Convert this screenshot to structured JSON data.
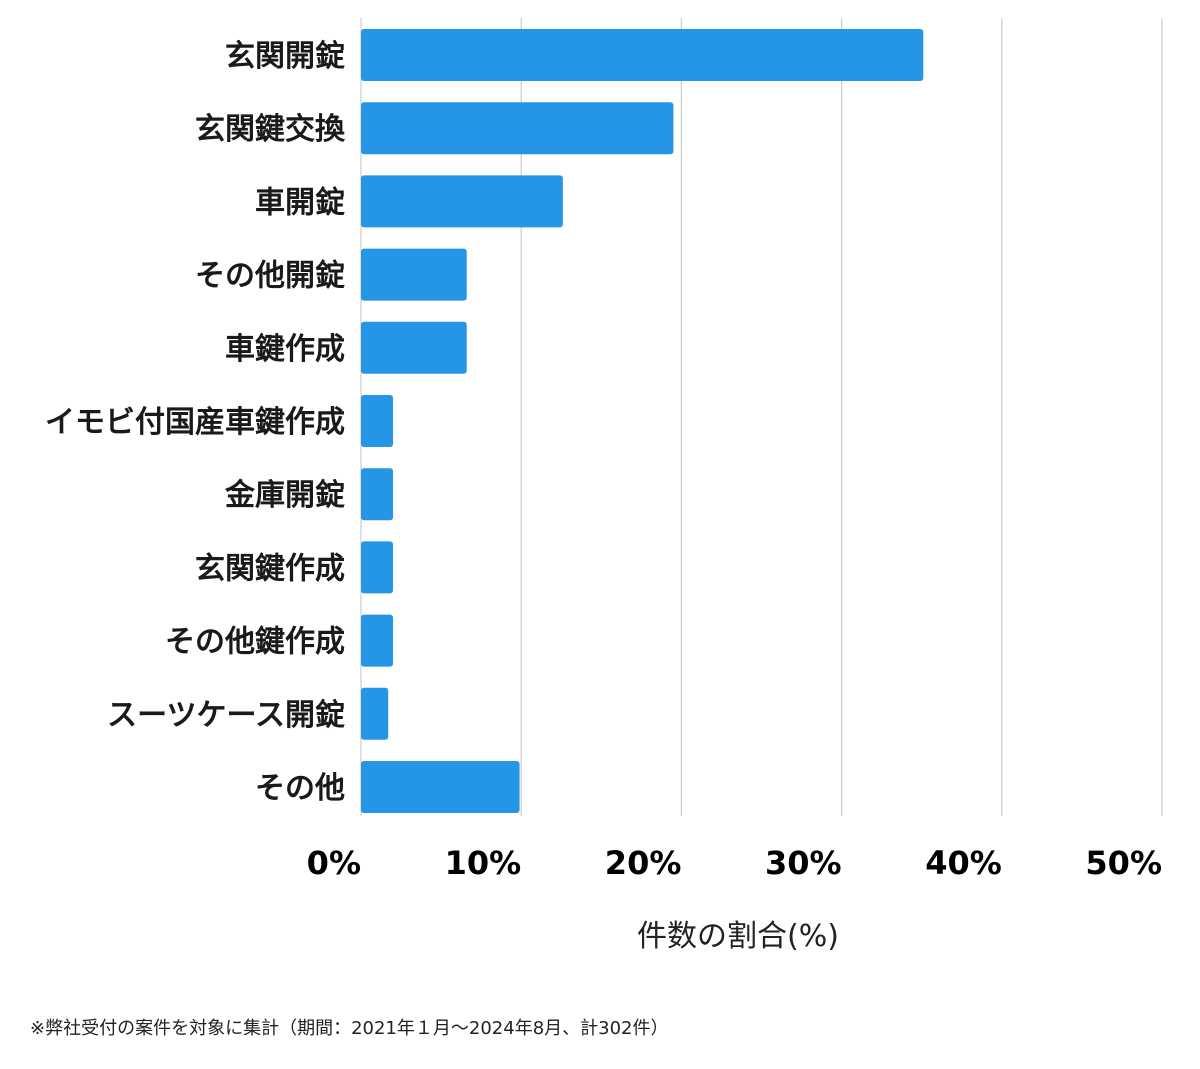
{
  "chart_data": {
    "type": "bar",
    "orientation": "horizontal",
    "categories": [
      "玄関開錠",
      "玄関鍵交換",
      "車開錠",
      "その他開錠",
      "車鍵作成",
      "イモビ付国産車鍵作成",
      "金庫開錠",
      "玄関鍵作成",
      "その他鍵作成",
      "スーツケース開錠",
      "その他"
    ],
    "values": [
      35.1,
      19.5,
      12.6,
      6.6,
      6.6,
      2.0,
      2.0,
      2.0,
      2.0,
      1.7,
      9.9
    ],
    "xlabel": "件数の割合(%)",
    "ylabel": "",
    "xlim": [
      0,
      50
    ],
    "xticks": [
      0,
      10,
      20,
      30,
      40,
      50
    ],
    "xtick_labels": [
      "0%",
      "10%",
      "20%",
      "30%",
      "40%",
      "50%"
    ],
    "grid": true,
    "bar_color": "#2595e5",
    "grid_color": "#cccccc"
  },
  "footnote": "※弊社受付の案件を対象に集計（期間：2021年１月〜2024年8月、計302件）"
}
